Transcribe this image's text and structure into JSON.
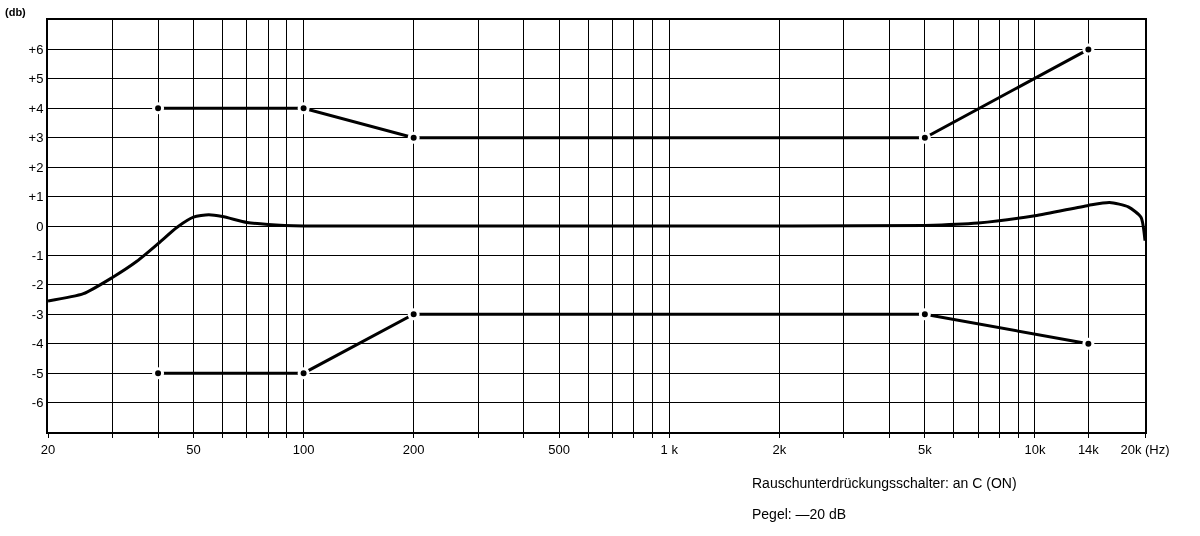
{
  "chart_data": {
    "type": "line",
    "ylabel": "(db)",
    "log": "x",
    "grid": true,
    "xlim": [
      20,
      20000
    ],
    "ylim": [
      -7,
      7
    ],
    "xticks": [
      20,
      {
        "value": 30,
        "label": null
      },
      {
        "value": 40,
        "label": null
      },
      50,
      {
        "value": 60,
        "label": null
      },
      {
        "value": 70,
        "label": null
      },
      {
        "value": 80,
        "label": null
      },
      {
        "value": 90,
        "label": null
      },
      100,
      200,
      {
        "value": 300,
        "label": null
      },
      {
        "value": 400,
        "label": null
      },
      500,
      {
        "value": 600,
        "label": null
      },
      {
        "value": 700,
        "label": null
      },
      {
        "value": 800,
        "label": null
      },
      {
        "value": 900,
        "label": null
      },
      {
        "value": 1000,
        "label": "1 k"
      },
      {
        "value": 2000,
        "label": "2k"
      },
      {
        "value": 3000,
        "label": null
      },
      {
        "value": 4000,
        "label": null
      },
      {
        "value": 5000,
        "label": "5k"
      },
      {
        "value": 6000,
        "label": null
      },
      {
        "value": 7000,
        "label": null
      },
      {
        "value": 8000,
        "label": null
      },
      {
        "value": 9000,
        "label": null
      },
      {
        "value": 10000,
        "label": "10k"
      },
      {
        "value": 14000,
        "label": "14k"
      },
      {
        "value": 20000,
        "label": "20k (Hz)"
      }
    ],
    "yticks": [
      {
        "value": -7,
        "label": null
      },
      -6,
      -5,
      -4,
      -3,
      -2,
      -1,
      0,
      {
        "value": 1,
        "label": "+1"
      },
      {
        "value": 2,
        "label": "+2"
      },
      {
        "value": 3,
        "label": "+3"
      },
      {
        "value": 4,
        "label": "+4"
      },
      {
        "value": 5,
        "label": "+5"
      },
      {
        "value": 6,
        "label": "+6"
      },
      {
        "value": 7,
        "label": null
      }
    ],
    "series": [
      {
        "color": "#000000",
        "marker": "circle",
        "x": [
          40,
          100,
          200,
          5000,
          14000
        ],
        "values": [
          4,
          4,
          3,
          3,
          6
        ]
      },
      {
        "color": "#000000",
        "marker": "none",
        "x": [
          20,
          25,
          30,
          35,
          40,
          45,
          50,
          55,
          60,
          70,
          80,
          100,
          200,
          1000,
          5000,
          7000,
          10000,
          14000,
          16000,
          18000,
          19500,
          20000
        ],
        "values": [
          -2.55,
          -2.3,
          -1.75,
          -1.2,
          -0.6,
          -0.05,
          0.3,
          0.38,
          0.32,
          0.12,
          0.05,
          0,
          0,
          0,
          0.02,
          0.1,
          0.35,
          0.7,
          0.8,
          0.65,
          0.3,
          -0.5
        ]
      },
      {
        "color": "#000000",
        "marker": "circle",
        "x": [
          40,
          100,
          200,
          5000,
          14000
        ],
        "values": [
          -5,
          -5,
          -3,
          -3,
          -4
        ]
      }
    ],
    "annotations": [
      "Rauschunterdrückungsschalter: an C (ON)",
      "Pegel: —20 dB"
    ]
  }
}
